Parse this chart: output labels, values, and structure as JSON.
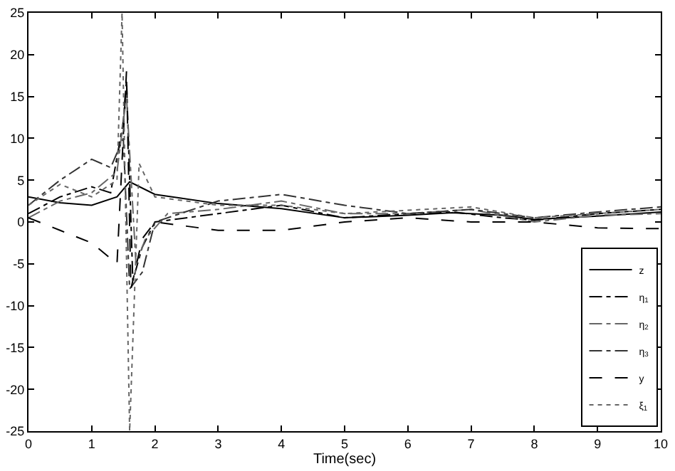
{
  "chart_data": {
    "type": "line",
    "xlabel": "Time(sec)",
    "xlim": [
      0,
      10
    ],
    "xticks": [
      0,
      1,
      2,
      3,
      4,
      5,
      6,
      7,
      8,
      9,
      10
    ],
    "ylim": [
      -25,
      25
    ],
    "yticks": [
      -25,
      -20,
      -15,
      -10,
      -5,
      0,
      5,
      10,
      15,
      20,
      25
    ],
    "legend": "bottom right",
    "marker": "none",
    "series": [
      {
        "name": "z",
        "color": "#000000",
        "line_style": "solid",
        "x": [
          0,
          0.5,
          1,
          1.4,
          1.6,
          2,
          3,
          4,
          5,
          6,
          6.7,
          7.5,
          8,
          9,
          10
        ],
        "values": [
          3,
          2.3,
          2.0,
          3,
          4.8,
          3.3,
          2.2,
          1.6,
          0.5,
          0.8,
          1.1,
          0.8,
          0.3,
          0.7,
          1.2
        ]
      },
      {
        "name": "η$_{1}$",
        "color": "#000000",
        "line_style": "dashdot",
        "x": [
          0,
          0.5,
          1,
          1.3,
          1.5,
          1.55,
          1.65,
          1.8,
          2,
          3,
          4,
          5,
          6,
          6.7,
          7.5,
          8,
          9,
          10
        ],
        "values": [
          1,
          3,
          4.2,
          3.5,
          12,
          17,
          -7,
          -3,
          0,
          1,
          2,
          0.5,
          1,
          1.2,
          0.5,
          0.2,
          1,
          1.5
        ]
      },
      {
        "name": "η$_{2}$",
        "color": "#666666",
        "line_style": "dashdot",
        "x": [
          0,
          0.5,
          1,
          1.4,
          1.55,
          1.7,
          1.85,
          2.2,
          3,
          4,
          5,
          6,
          7,
          8,
          9,
          10
        ],
        "values": [
          0.5,
          2.5,
          3.5,
          6,
          15,
          -5,
          -2,
          1,
          1.5,
          2.5,
          1,
          1,
          1.5,
          0,
          0.8,
          1
        ]
      },
      {
        "name": "η$_{3}$",
        "color": "#333333",
        "line_style": "dashdot",
        "x": [
          0,
          0.5,
          1,
          1.3,
          1.5,
          1.6,
          1.8,
          2,
          3,
          4,
          5,
          6,
          7,
          8,
          9,
          10
        ],
        "values": [
          2,
          5,
          7.5,
          6.5,
          10,
          -8,
          -6,
          0,
          2.5,
          3.3,
          2,
          1,
          1.5,
          0.5,
          1.2,
          1.8
        ]
      },
      {
        "name": "y",
        "color": "#000000",
        "line_style": "dashed",
        "x": [
          0,
          0.5,
          1,
          1.4,
          1.55,
          1.62,
          1.8,
          2,
          2.5,
          3,
          4,
          5,
          6,
          7,
          8,
          9,
          10
        ],
        "values": [
          0.5,
          -1,
          -2.5,
          -5,
          18,
          -8,
          -2,
          0,
          -0.5,
          -1,
          -1,
          0,
          0.5,
          0,
          0,
          -0.7,
          -0.8
        ]
      },
      {
        "name": "ξ$_{1}$",
        "color": "#666666",
        "line_style": "dotted",
        "x": [
          0,
          0.5,
          1,
          1.4,
          1.48,
          1.6,
          1.75,
          2,
          3,
          4,
          5,
          7,
          8,
          10
        ],
        "values": [
          2,
          4.5,
          3,
          5,
          25,
          -25,
          7,
          3,
          2,
          2,
          1,
          1.8,
          0.5,
          1.5
        ]
      }
    ]
  }
}
